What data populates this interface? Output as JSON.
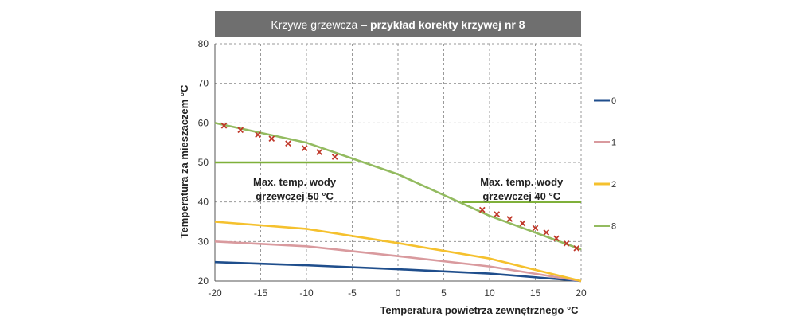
{
  "chart_data": {
    "type": "line",
    "title_prefix": "Krzywe grzewcza –",
    "title_bold": "przykład korekty krzywej nr 8",
    "xlabel": "Temperatura powietrza zewnętrznego °C",
    "ylabel": "Temperatura za mieszaczem °C",
    "xlim": [
      -20,
      20
    ],
    "ylim": [
      20,
      80
    ],
    "x_ticks": [
      -20,
      -15,
      -10,
      -5,
      0,
      5,
      10,
      15,
      20
    ],
    "y_ticks": [
      20,
      30,
      40,
      50,
      60,
      70,
      80
    ],
    "x_tick_labels": [
      "-20",
      "-15",
      "-10",
      "-5",
      "0",
      "5",
      "10",
      "15",
      "20"
    ],
    "y_tick_labels": [
      "20",
      "30",
      "40",
      "50",
      "60",
      "70",
      "80"
    ],
    "grid": true,
    "legend_position": "right",
    "series": [
      {
        "name": "0",
        "color": "#1f4e8c",
        "x": [
          -20,
          -10,
          0,
          10,
          20
        ],
        "y": [
          24.8,
          24.0,
          23.0,
          21.9,
          20.0
        ]
      },
      {
        "name": "1",
        "color": "#d99a9e",
        "x": [
          -20,
          -10,
          0,
          10,
          20
        ],
        "y": [
          30.0,
          28.8,
          26.3,
          23.7,
          20.0
        ]
      },
      {
        "name": "2",
        "color": "#f5c12e",
        "x": [
          -20,
          -10,
          0,
          10,
          20
        ],
        "y": [
          35.0,
          33.2,
          29.6,
          25.7,
          20.0
        ]
      },
      {
        "name": "8",
        "color": "#93bb60",
        "x": [
          -20,
          -10,
          0,
          10,
          20
        ],
        "y": [
          60.0,
          55.0,
          47.0,
          36.5,
          28.0
        ]
      }
    ],
    "limit_lines": [
      {
        "x": [
          -20,
          -5
        ],
        "y": 50,
        "color": "#7fb03a"
      },
      {
        "x": [
          7,
          20
        ],
        "y": 40,
        "color": "#7fb03a"
      }
    ],
    "markers": {
      "color": "#c0392b",
      "points": [
        {
          "x": -19,
          "y": 59.3
        },
        {
          "x": -17.2,
          "y": 58.2
        },
        {
          "x": -15.3,
          "y": 57.0
        },
        {
          "x": -13.8,
          "y": 56.0
        },
        {
          "x": -12,
          "y": 54.8
        },
        {
          "x": -10.2,
          "y": 53.6
        },
        {
          "x": -8.6,
          "y": 52.6
        },
        {
          "x": -6.9,
          "y": 51.4
        },
        {
          "x": 9.2,
          "y": 38.0
        },
        {
          "x": 10.8,
          "y": 36.9
        },
        {
          "x": 12.2,
          "y": 35.7
        },
        {
          "x": 13.6,
          "y": 34.6
        },
        {
          "x": 15,
          "y": 33.4
        },
        {
          "x": 16.2,
          "y": 32.3
        },
        {
          "x": 17.3,
          "y": 30.8
        },
        {
          "x": 18.4,
          "y": 29.5
        },
        {
          "x": 19.5,
          "y": 28.3
        }
      ]
    },
    "annotations": [
      {
        "lines": [
          "Max. temp. wody",
          "grzewczej 50 °C"
        ],
        "x": -11.3,
        "y": 44.2
      },
      {
        "lines": [
          "Max. temp. wody",
          "grzewczej 40 °C"
        ],
        "x": 13.5,
        "y": 44.2
      }
    ]
  }
}
